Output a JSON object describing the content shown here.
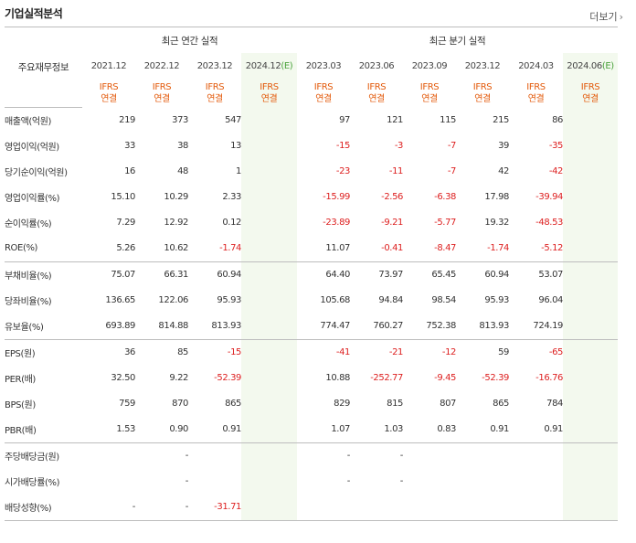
{
  "header": {
    "title": "기업실적분석",
    "more_label": "더보기",
    "more_icon": "chevron-right-icon"
  },
  "table": {
    "row_header_label": "주요재무정보",
    "annual_group_label": "최근 연간 실적",
    "quarter_group_label": "최근 분기 실적",
    "annual_periods": [
      {
        "label": "2021.12"
      },
      {
        "label": "2022.12"
      },
      {
        "label": "2023.12"
      },
      {
        "label": "2024.12",
        "estimate_mark": "(E)"
      }
    ],
    "quarter_periods": [
      {
        "label": "2023.03"
      },
      {
        "label": "2023.06"
      },
      {
        "label": "2023.09"
      },
      {
        "label": "2023.12"
      },
      {
        "label": "2024.03"
      },
      {
        "label": "2024.06",
        "estimate_mark": "(E)"
      }
    ],
    "standard_line1": "IFRS",
    "standard_line2": "연결",
    "rows": [
      {
        "label": "매출액(억원)",
        "annual": [
          "219",
          "373",
          "547",
          ""
        ],
        "quarter": [
          "97",
          "121",
          "115",
          "215",
          "86",
          ""
        ]
      },
      {
        "label": "영업이익(억원)",
        "annual": [
          "33",
          "38",
          "13",
          ""
        ],
        "quarter": [
          "-15",
          "-3",
          "-7",
          "39",
          "-35",
          ""
        ]
      },
      {
        "label": "당기순이익(억원)",
        "annual": [
          "16",
          "48",
          "1",
          ""
        ],
        "quarter": [
          "-23",
          "-11",
          "-7",
          "42",
          "-42",
          ""
        ]
      },
      {
        "label": "영업이익률(%)",
        "annual": [
          "15.10",
          "10.29",
          "2.33",
          ""
        ],
        "quarter": [
          "-15.99",
          "-2.56",
          "-6.38",
          "17.98",
          "-39.94",
          ""
        ]
      },
      {
        "label": "순이익률(%)",
        "annual": [
          "7.29",
          "12.92",
          "0.12",
          ""
        ],
        "quarter": [
          "-23.89",
          "-9.21",
          "-5.77",
          "19.32",
          "-48.53",
          ""
        ]
      },
      {
        "label": "ROE(%)",
        "annual": [
          "5.26",
          "10.62",
          "-1.74",
          ""
        ],
        "quarter": [
          "11.07",
          "-0.41",
          "-8.47",
          "-1.74",
          "-5.12",
          ""
        ]
      },
      {
        "label": "부채비율(%)",
        "annual": [
          "75.07",
          "66.31",
          "60.94",
          ""
        ],
        "quarter": [
          "64.40",
          "73.97",
          "65.45",
          "60.94",
          "53.07",
          ""
        ]
      },
      {
        "label": "당좌비율(%)",
        "annual": [
          "136.65",
          "122.06",
          "95.93",
          ""
        ],
        "quarter": [
          "105.68",
          "94.84",
          "98.54",
          "95.93",
          "96.04",
          ""
        ]
      },
      {
        "label": "유보율(%)",
        "annual": [
          "693.89",
          "814.88",
          "813.93",
          ""
        ],
        "quarter": [
          "774.47",
          "760.27",
          "752.38",
          "813.93",
          "724.19",
          ""
        ]
      },
      {
        "label": "EPS(원)",
        "annual": [
          "36",
          "85",
          "-15",
          ""
        ],
        "quarter": [
          "-41",
          "-21",
          "-12",
          "59",
          "-65",
          ""
        ]
      },
      {
        "label": "PER(배)",
        "annual": [
          "32.50",
          "9.22",
          "-52.39",
          ""
        ],
        "quarter": [
          "10.88",
          "-252.77",
          "-9.45",
          "-52.39",
          "-16.76",
          ""
        ]
      },
      {
        "label": "BPS(원)",
        "annual": [
          "759",
          "870",
          "865",
          ""
        ],
        "quarter": [
          "829",
          "815",
          "807",
          "865",
          "784",
          ""
        ]
      },
      {
        "label": "PBR(배)",
        "annual": [
          "1.53",
          "0.90",
          "0.91",
          ""
        ],
        "quarter": [
          "1.07",
          "1.03",
          "0.83",
          "0.91",
          "0.91",
          ""
        ]
      },
      {
        "label": "주당배당금(원)",
        "annual": [
          "",
          "-",
          "",
          ""
        ],
        "quarter": [
          "-",
          "-",
          "",
          "",
          "",
          ""
        ]
      },
      {
        "label": "시가배당률(%)",
        "annual": [
          "",
          "-",
          "",
          ""
        ],
        "quarter": [
          "-",
          "-",
          "",
          "",
          "",
          ""
        ]
      },
      {
        "label": "배당성향(%)",
        "annual": [
          "-",
          "-",
          "-31.71",
          ""
        ],
        "quarter": [
          "",
          "",
          "",
          "",
          "",
          ""
        ]
      }
    ]
  },
  "colors": {
    "negative": "#dd1f1f",
    "standard_text": "#e35a0b",
    "estimate_mark": "#48a13a",
    "estimate_bg": "#f3f9ee"
  }
}
